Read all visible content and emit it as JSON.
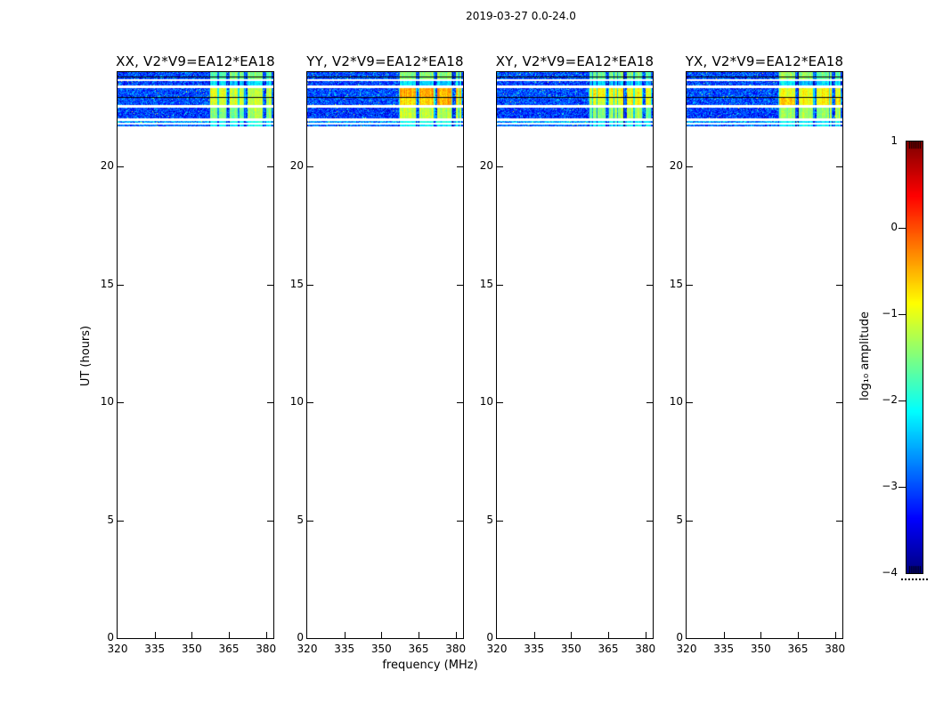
{
  "figure": {
    "title": "2019-03-27 0.0-24.0",
    "xlabel": "frequency (MHz)",
    "ylabel": "UT (hours)",
    "colorbar_label": "log₁₀ amplitude",
    "background_color": "#ffffff",
    "axis_color": "#000000"
  },
  "chart_data": {
    "type": "heatmap",
    "colormap": "jet",
    "title": "2019-03-27 0.0-24.0",
    "panels": [
      {
        "id": "XX",
        "title": "XX, V2*V9=EA12*EA18"
      },
      {
        "id": "YY",
        "title": "YY, V2*V9=EA12*EA18"
      },
      {
        "id": "XY",
        "title": "XY, V2*V9=EA12*EA18"
      },
      {
        "id": "YX",
        "title": "YX, V2*V9=EA12*EA18"
      }
    ],
    "x_axis": {
      "label": "frequency (MHz)",
      "min": 320,
      "max": 383,
      "ticks": [
        320,
        335,
        350,
        365,
        380
      ]
    },
    "y_axis": {
      "label": "UT (hours)",
      "min": 0,
      "max": 24,
      "ticks": [
        0,
        5,
        10,
        15,
        20
      ]
    },
    "colorbar": {
      "label": "log₁₀ amplitude",
      "min": -4,
      "max": 1,
      "ticks": [
        1,
        0,
        -1,
        -2,
        -3,
        -4
      ]
    },
    "data_present_ut_range": [
      21.7,
      24.0
    ],
    "noise_log_amp": {
      "base": -3.05,
      "sigma": 0.33
    },
    "rfi_block_freq_ranges_mhz": [
      [
        357.0,
        364.0
      ],
      [
        364.8,
        371.5
      ],
      [
        372.3,
        379.0
      ],
      [
        379.8,
        382.5
      ]
    ],
    "scans": [
      {
        "row": "A",
        "ut": [
          24.0,
          23.7
        ],
        "noise_base": -3.0
      },
      {
        "row": "B",
        "ut": [
          23.62,
          23.44
        ],
        "noise_base": -3.05
      },
      {
        "row": "C",
        "ut": [
          23.32,
          22.95
        ],
        "noise_base": -3.0
      },
      {
        "row": "D",
        "ut": [
          22.91,
          22.61
        ],
        "noise_base": -3.0
      },
      {
        "row": "E",
        "ut": [
          22.5,
          22.04
        ],
        "noise_base": -3.1
      },
      {
        "row": "F",
        "ut": [
          21.93,
          21.86
        ],
        "noise_base": -2.6
      },
      {
        "row": "G",
        "ut": [
          21.78,
          21.71
        ],
        "noise_base": -2.85
      }
    ],
    "block_log_amp_by_panel": {
      "XX": {
        "A": -1.6,
        "B": -2.35,
        "C": -1.15,
        "D": -1.1,
        "E": -1.45,
        "F": -2.15,
        "G": -2.2
      },
      "YY": {
        "A": -1.5,
        "B": -2.3,
        "C": -0.55,
        "D": -0.65,
        "E": -1.3,
        "F": -2.1,
        "G": -2.15
      },
      "XY": {
        "A": -1.55,
        "B": -2.35,
        "C": -1.0,
        "D": -1.0,
        "E": -1.4,
        "F": -2.15,
        "G": -2.2
      },
      "YX": {
        "A": -1.55,
        "B": -2.35,
        "C": -0.95,
        "D": -0.85,
        "E": -1.35,
        "F": -2.1,
        "G": -2.15
      }
    },
    "black_line_ut": [
      23.81,
      22.93
    ]
  }
}
